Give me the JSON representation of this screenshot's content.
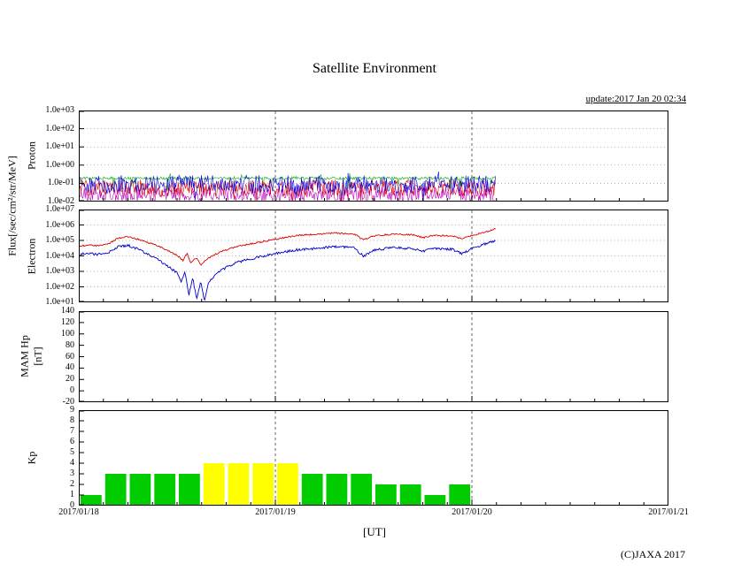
{
  "header": {
    "title": "Satellite Environment",
    "update_text": "update:2017 Jan 20 02:34"
  },
  "footer": {
    "copyright": "(C)JAXA 2017"
  },
  "xaxis": {
    "label": "[UT]",
    "ticks": [
      "2017/01/18",
      "2017/01/19",
      "2017/01/20",
      "2017/01/21"
    ]
  },
  "yaxis": {
    "flux_label": "Flux[/sec/cm²/str/MeV]"
  },
  "panels": {
    "proton": {
      "label": "Proton",
      "yticks": [
        "1.0e+03",
        "1.0e+02",
        "1.0e+01",
        "1.0e+00",
        "1.0e-01",
        "1.0e-02"
      ]
    },
    "electron": {
      "label": "Electron",
      "yticks": [
        "1.0e+07",
        "1.0e+06",
        "1.0e+05",
        "1.0e+04",
        "1.0e+03",
        "1.0e+02",
        "1.0e+01"
      ]
    },
    "mam": {
      "label_line1": "MAM Hp",
      "label_line2": "[nT]",
      "yticks": [
        "140",
        "120",
        "100",
        "80",
        "60",
        "40",
        "20",
        "0",
        "-20"
      ]
    },
    "kp": {
      "label": "Kp",
      "yticks": [
        "9",
        "8",
        "7",
        "6",
        "5",
        "4",
        "3",
        "2",
        "1",
        "0"
      ]
    }
  },
  "chart_data": [
    {
      "type": "line",
      "panel": "proton",
      "title": "Proton flux",
      "yscale": "log",
      "ylim": [
        0.01,
        1000
      ],
      "x_days": [
        0,
        3
      ],
      "data_end_day": 2.12,
      "grid": true,
      "xlabel": "[UT]",
      "ylabel": "Proton Flux[/sec/cm²/str/MeV]",
      "note": "dense noisy multichannel traces between ~1e-2 and ~3e-1",
      "series": [
        {
          "name": "proton-green",
          "color": "#00aa00",
          "base_log10": -0.72,
          "noise_decades": 0.08
        },
        {
          "name": "proton-magenta",
          "color": "#bb00bb",
          "base_log10": -1.6,
          "noise_decades": 0.4
        },
        {
          "name": "proton-red",
          "color": "#dd0000",
          "base_log10": -1.25,
          "noise_decades": 0.45
        },
        {
          "name": "proton-blue",
          "color": "#0000dd",
          "base_log10": -1.05,
          "noise_decades": 0.5
        }
      ]
    },
    {
      "type": "line",
      "panel": "electron",
      "title": "Electron flux",
      "yscale": "log",
      "ylim": [
        10,
        10000000
      ],
      "x_days": [
        0,
        3
      ],
      "data_end_day": 2.12,
      "grid": true,
      "xlabel": "[UT]",
      "ylabel": "Electron Flux[/sec/cm²/str/MeV]",
      "series": [
        {
          "name": "electron-red",
          "color": "#dd0000",
          "jitter_decades": 0.05,
          "points": [
            [
              0,
              40000
            ],
            [
              0.05,
              52000
            ],
            [
              0.1,
              45000
            ],
            [
              0.15,
              60000
            ],
            [
              0.2,
              140000
            ],
            [
              0.25,
              180000
            ],
            [
              0.3,
              120000
            ],
            [
              0.35,
              75000
            ],
            [
              0.4,
              45000
            ],
            [
              0.45,
              22000
            ],
            [
              0.5,
              11000
            ],
            [
              0.53,
              5000
            ],
            [
              0.55,
              15000
            ],
            [
              0.57,
              3500
            ],
            [
              0.6,
              8000
            ],
            [
              0.62,
              2500
            ],
            [
              0.65,
              6000
            ],
            [
              0.68,
              10000
            ],
            [
              0.72,
              18000
            ],
            [
              0.8,
              40000
            ],
            [
              0.9,
              70000
            ],
            [
              1,
              120000
            ],
            [
              1.1,
              200000
            ],
            [
              1.2,
              250000
            ],
            [
              1.3,
              300000
            ],
            [
              1.4,
              260000
            ],
            [
              1.45,
              110000
            ],
            [
              1.5,
              200000
            ],
            [
              1.6,
              260000
            ],
            [
              1.7,
              230000
            ],
            [
              1.75,
              150000
            ],
            [
              1.8,
              210000
            ],
            [
              1.9,
              190000
            ],
            [
              1.95,
              130000
            ],
            [
              2,
              210000
            ],
            [
              2.05,
              300000
            ],
            [
              2.1,
              480000
            ],
            [
              2.12,
              600000
            ]
          ]
        },
        {
          "name": "electron-blue",
          "color": "#0000cc",
          "jitter_decades": 0.08,
          "points": [
            [
              0,
              12000
            ],
            [
              0.05,
              15000
            ],
            [
              0.1,
              12000
            ],
            [
              0.15,
              17000
            ],
            [
              0.2,
              38000
            ],
            [
              0.25,
              48000
            ],
            [
              0.3,
              28000
            ],
            [
              0.35,
              14000
            ],
            [
              0.4,
              6000
            ],
            [
              0.45,
              2200
            ],
            [
              0.5,
              800
            ],
            [
              0.52,
              180
            ],
            [
              0.54,
              900
            ],
            [
              0.56,
              30
            ],
            [
              0.58,
              400
            ],
            [
              0.6,
              14
            ],
            [
              0.62,
              250
            ],
            [
              0.64,
              12
            ],
            [
              0.66,
              180
            ],
            [
              0.7,
              700
            ],
            [
              0.75,
              1800
            ],
            [
              0.8,
              3800
            ],
            [
              0.9,
              7500
            ],
            [
              1,
              14000
            ],
            [
              1.1,
              24000
            ],
            [
              1.2,
              30000
            ],
            [
              1.3,
              40000
            ],
            [
              1.4,
              34000
            ],
            [
              1.45,
              9500
            ],
            [
              1.5,
              24000
            ],
            [
              1.6,
              34000
            ],
            [
              1.7,
              30000
            ],
            [
              1.75,
              19000
            ],
            [
              1.8,
              29000
            ],
            [
              1.9,
              27000
            ],
            [
              1.95,
              14000
            ],
            [
              2,
              30000
            ],
            [
              2.05,
              50000
            ],
            [
              2.1,
              80000
            ],
            [
              2.12,
              100000
            ]
          ]
        }
      ]
    },
    {
      "type": "line",
      "panel": "mam",
      "title": "MAM Hp",
      "yscale": "linear",
      "ylim": [
        -20,
        140
      ],
      "x_days": [
        0,
        3
      ],
      "grid": false,
      "xlabel": "[UT]",
      "ylabel": "MAM Hp [nT]",
      "series": [],
      "note": "no data plotted"
    },
    {
      "type": "bar",
      "panel": "kp",
      "title": "Kp index",
      "ylim": [
        0,
        9
      ],
      "x_days": [
        0,
        3
      ],
      "interval_hours": 3,
      "xlabel": "[UT]",
      "ylabel": "Kp",
      "values": [
        1,
        3,
        3,
        3,
        3,
        4,
        4,
        4,
        4,
        3,
        3,
        3,
        2,
        2,
        1,
        2
      ],
      "colors": [
        "green",
        "green",
        "green",
        "green",
        "green",
        "yellow",
        "yellow",
        "yellow",
        "yellow",
        "green",
        "green",
        "green",
        "green",
        "green",
        "green",
        "green"
      ],
      "color_map": {
        "green": "#00cc00",
        "yellow": "#ffff00"
      }
    }
  ]
}
